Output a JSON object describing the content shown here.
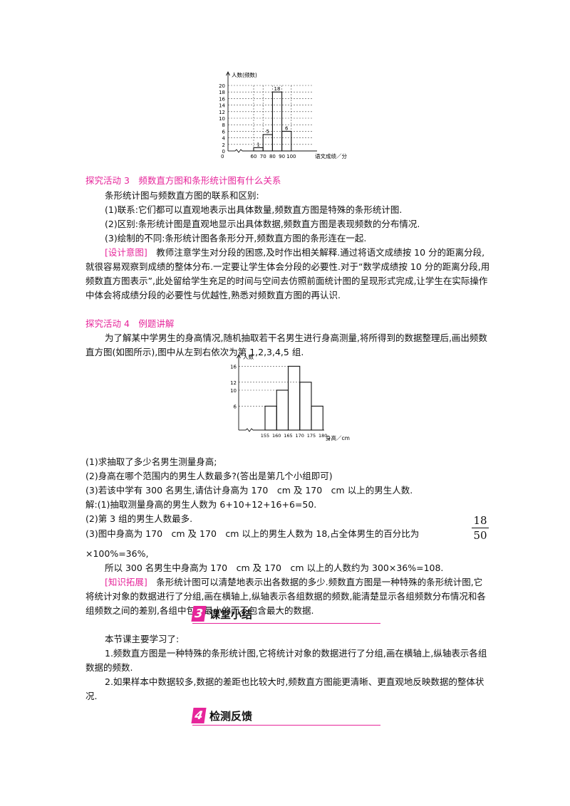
{
  "chart1": {
    "ylabel": "人数(频数)",
    "xlabel": "语文成绩／分",
    "ytick_labels": [
      "0",
      "2",
      "4",
      "6",
      "8",
      "10",
      "12",
      "14",
      "16",
      "18",
      "20"
    ],
    "xtick_labels": [
      "60",
      "70",
      "80",
      "90",
      "100"
    ],
    "bar_labels": [
      "1",
      "5",
      "18",
      "6"
    ]
  },
  "chart2": {
    "ylabel": "人数",
    "xlabel": "身高／cm",
    "ytick_labels": [
      "6",
      "10",
      "12",
      "16"
    ],
    "xtick_labels": [
      "155",
      "160",
      "165",
      "170",
      "175",
      "180"
    ]
  },
  "chart_data": [
    {
      "type": "bar",
      "xlabel": "语文成绩／分",
      "ylabel": "人数(频数)",
      "x_edges": [
        60,
        70,
        80,
        90,
        100
      ],
      "categories": [
        "60-70",
        "70-80",
        "80-90",
        "90-100"
      ],
      "values": [
        1,
        5,
        18,
        6
      ],
      "ylim": [
        0,
        20
      ],
      "grid": true
    },
    {
      "type": "bar",
      "xlabel": "身高／cm",
      "ylabel": "人数",
      "x_edges": [
        155,
        160,
        165,
        170,
        175,
        180
      ],
      "categories": [
        "155-160",
        "160-165",
        "165-170",
        "170-175",
        "175-180"
      ],
      "values": [
        6,
        10,
        16,
        12,
        6
      ],
      "ylim": [
        0,
        18
      ],
      "grid": false
    }
  ],
  "act3": {
    "title": "探究活动 3　频数直方图和条形统计图有什么关系",
    "intro": "条形统计图与频数直方图的联系和区别:",
    "p1": "(1)联系:它们都可以直观地表示出具体数量,频数直方图是特殊的条形统计图.",
    "p2": "(2)区别:条形统计图是直观地显示出具体数据,频数直方图是表现频数的分布情况.",
    "p3": "(3)绘制的不同:条形统计图各条形分开,频数直方图的条形连在一起.",
    "design_tag": "[设计意图]",
    "design_text": "　教师注意学生对分段的困惑,及时作出相关解释.通过将语文成绩按 10 分的距离分段,就很容易观察到成绩的整体分布.一定要让学生体会分段的必要性.对于“数学成绩按 10 分的距离分段,用频数直方图表示”,此处留给学生充足的时间与空间去仿照前面统计图的呈现形式完成,让学生在实际操作中体会将成绩分段的必要性与优越性,熟悉对频数直方图的再认识."
  },
  "act4": {
    "title": "探究活动 4　例题讲解",
    "intro": "为了解某中学男生的身高情况,随机抽取若干名男生进行身高测量,将所得到的数据整理后,画出频数直方图(如图所示),图中从左到右依次为第 1,2,3,4,5 组.",
    "q1": "(1)求抽取了多少名男生测量身高;",
    "q2": "(2)身高在哪个范围内的男生人数最多?(答出是第几个小组即可)",
    "q3": "(3)若该中学有 300 名男生,请估计身高为 170　cm 及 170　cm 以上的男生人数.",
    "a1": "解:(1)抽取测量身高的男生人数为 6+10+12+16+6=50.",
    "a2": "(2)第 3 组的男生人数最多.",
    "a3": "(3)图中身高为 170　cm 及 170　cm 以上的男生人数为 18,占全体男生的百分比为",
    "frac_num": "18",
    "frac_den": "50",
    "a3b": "×100%=36%,",
    "a4": "所以 300 名男生中身高为 170　cm 及 170　cm 以上的人数约为 300×36%=108.",
    "ext_tag": "[知识拓展]",
    "ext_text": "　条形统计图可以清楚地表示出各数据的多少.频数直方图是一种特殊的条形统计图,它将统计对象的数据进行了分组,画在横轴上,纵轴表示各组数据的频数,能清楚显示各组频数分布情况和各组频数之间的差别,各组中包含最小的而不包含最大的数据."
  },
  "sec3": {
    "number": "3",
    "title": "课堂小结",
    "intro": "本节课主要学习了:",
    "p1": "1.频数直方图是一种特殊的条形统计图,它将统计对象的数据进行了分组,画在横轴上,纵轴表示各组数据的频数.",
    "p2": "2.如果样本中数据较多,数据的差距也比较大时,频数直方图能更清晰、更直观地反映数据的整体状况."
  },
  "sec4": {
    "number": "4",
    "title": "检测反馈"
  },
  "colors": {
    "accent": "#e6259a",
    "text": "#111111"
  }
}
